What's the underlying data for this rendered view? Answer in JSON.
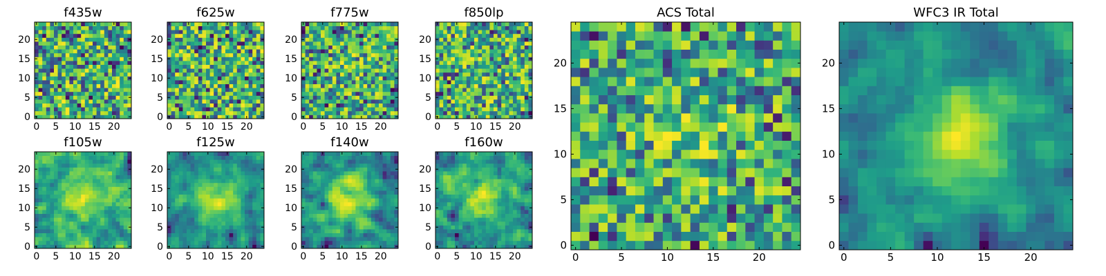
{
  "chart_data": [
    {
      "type": "heatmap",
      "title": "f435w",
      "grid_size": [
        25,
        25
      ],
      "xticks": [
        0,
        5,
        10,
        15,
        20
      ],
      "yticks": [
        0,
        5,
        10,
        15,
        20
      ],
      "texture": "noise",
      "seed": 11,
      "peak": 0.0,
      "colormap": "viridis"
    },
    {
      "type": "heatmap",
      "title": "f625w",
      "grid_size": [
        25,
        25
      ],
      "xticks": [
        0,
        5,
        10,
        15,
        20
      ],
      "yticks": [
        0,
        5,
        10,
        15,
        20
      ],
      "texture": "noise",
      "seed": 23,
      "peak": 0.0,
      "colormap": "viridis"
    },
    {
      "type": "heatmap",
      "title": "f775w",
      "grid_size": [
        25,
        25
      ],
      "xticks": [
        0,
        5,
        10,
        15,
        20
      ],
      "yticks": [
        0,
        5,
        10,
        15,
        20
      ],
      "texture": "noise",
      "seed": 37,
      "peak": 0.1,
      "colormap": "viridis"
    },
    {
      "type": "heatmap",
      "title": "f850lp",
      "grid_size": [
        25,
        25
      ],
      "xticks": [
        0,
        5,
        10,
        15,
        20
      ],
      "yticks": [
        0,
        5,
        10,
        15,
        20
      ],
      "texture": "noise",
      "seed": 41,
      "peak": 0.05,
      "colormap": "viridis"
    },
    {
      "type": "heatmap",
      "title": "f105w",
      "grid_size": [
        25,
        25
      ],
      "xticks": [
        0,
        5,
        10,
        15,
        20
      ],
      "yticks": [
        0,
        5,
        10,
        15,
        20
      ],
      "texture": "smooth",
      "seed": 53,
      "peak": 0.25,
      "colormap": "viridis"
    },
    {
      "type": "heatmap",
      "title": "f125w",
      "grid_size": [
        25,
        25
      ],
      "xticks": [
        0,
        5,
        10,
        15,
        20
      ],
      "yticks": [
        0,
        5,
        10,
        15,
        20
      ],
      "texture": "smooth",
      "seed": 67,
      "peak": 0.45,
      "colormap": "viridis"
    },
    {
      "type": "heatmap",
      "title": "f140w",
      "grid_size": [
        25,
        25
      ],
      "xticks": [
        0,
        5,
        10,
        15,
        20
      ],
      "yticks": [
        0,
        5,
        10,
        15,
        20
      ],
      "texture": "smooth",
      "seed": 71,
      "peak": 0.35,
      "colormap": "viridis"
    },
    {
      "type": "heatmap",
      "title": "f160w",
      "grid_size": [
        25,
        25
      ],
      "xticks": [
        0,
        5,
        10,
        15,
        20
      ],
      "yticks": [
        0,
        5,
        10,
        15,
        20
      ],
      "texture": "smooth",
      "seed": 83,
      "peak": 0.4,
      "colormap": "viridis"
    },
    {
      "type": "heatmap",
      "title": "ACS Total",
      "grid_size": [
        25,
        25
      ],
      "xticks": [
        0,
        5,
        10,
        15,
        20
      ],
      "yticks": [
        0,
        5,
        10,
        15,
        20
      ],
      "texture": "noise",
      "seed": 97,
      "peak": 0.2,
      "colormap": "viridis"
    },
    {
      "type": "heatmap",
      "title": "WFC3 IR Total",
      "grid_size": [
        25,
        25
      ],
      "xticks": [
        0,
        5,
        10,
        15,
        20
      ],
      "yticks": [
        0,
        5,
        10,
        15,
        20
      ],
      "texture": "smooth",
      "seed": 101,
      "peak": 0.6,
      "colormap": "viridis"
    }
  ]
}
